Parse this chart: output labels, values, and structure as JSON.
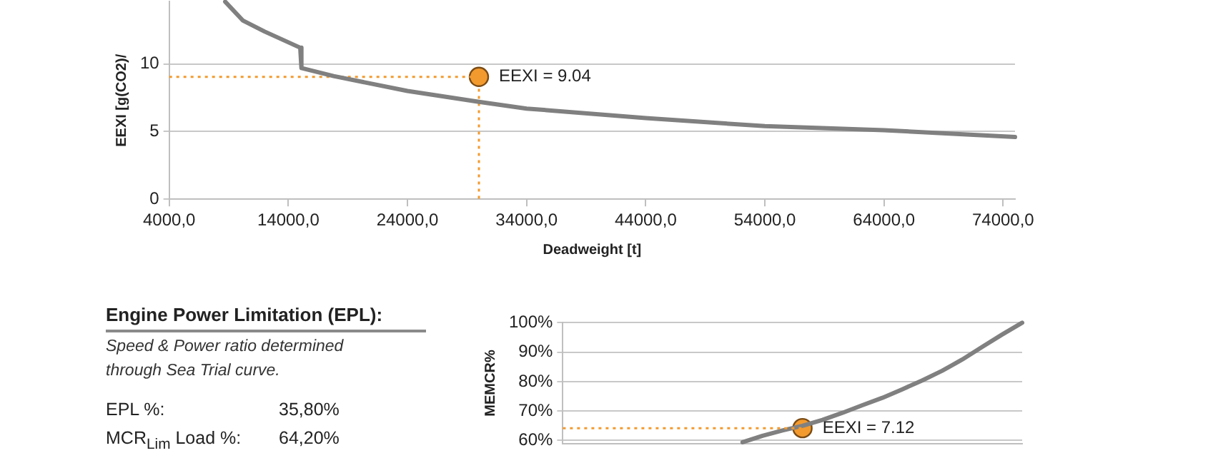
{
  "chart_data": [
    {
      "type": "line",
      "xlabel": "Deadweight [t]",
      "ylabel": "EEXI [g(CO2)/",
      "xlim": [
        4000,
        75000
      ],
      "ylim": [
        0,
        14.6
      ],
      "xticks": [
        {
          "value": 4000,
          "label": "4000,0"
        },
        {
          "value": 14000,
          "label": "14000,0"
        },
        {
          "value": 24000,
          "label": "24000,0"
        },
        {
          "value": 34000,
          "label": "34000,0"
        },
        {
          "value": 44000,
          "label": "44000,0"
        },
        {
          "value": 54000,
          "label": "54000,0"
        },
        {
          "value": 64000,
          "label": "64000,0"
        },
        {
          "value": 74000,
          "label": "74000,0"
        }
      ],
      "yticks": [
        0,
        5,
        10
      ],
      "grid": "y",
      "series": [
        {
          "type": "line",
          "color": "#808080",
          "x": [
            8700,
            10200,
            12000,
            15000,
            15100,
            17800,
            24000,
            30000,
            34000,
            44000,
            54000,
            64000,
            75000
          ],
          "values": [
            14.6,
            13.2,
            12.4,
            11.2,
            9.7,
            9.1,
            8.0,
            7.2,
            6.7,
            6.0,
            5.4,
            5.1,
            4.6
          ]
        },
        {
          "type": "line",
          "line_style": "dotted",
          "color": "#f39a2e",
          "x": [
            4000,
            30000,
            30000
          ],
          "values": [
            9.04,
            9.04,
            0
          ]
        },
        {
          "type": "scatter",
          "marker": "circle",
          "color": "#f39a2e",
          "x": [
            30000
          ],
          "values": [
            9.04
          ]
        }
      ],
      "annotations": [
        {
          "text": "EEXI = 9.04",
          "x": 30000,
          "y": 9.04
        }
      ]
    },
    {
      "type": "other",
      "title": "Engine Power Limitation (EPL):",
      "subtitle": "Speed & Power ratio determined through Sea Trial curve.",
      "annotations": [
        "EPL %:",
        "35,80%",
        "MCR$_{Lim}$ Load %:",
        "64,20%"
      ]
    },
    {
      "type": "line",
      "ylabel": "MEMCR%",
      "ylim": [
        59,
        100
      ],
      "yticks": [
        {
          "value": 60,
          "label": "60%"
        },
        {
          "value": 70,
          "label": "70%"
        },
        {
          "value": 80,
          "label": "80%"
        },
        {
          "value": 90,
          "label": "90%"
        },
        {
          "value": 100,
          "label": "100%"
        }
      ],
      "grid": "y",
      "tick_labels": "y",
      "categories": [
        null,
        null,
        null,
        null,
        null,
        null,
        null,
        null,
        null,
        null,
        null,
        null,
        null,
        null,
        null,
        null,
        null,
        null,
        null,
        null,
        null,
        null,
        null,
        null
      ],
      "series": [
        {
          "type": "line",
          "line_style": "dotted",
          "color": "#f39a2e",
          "values": [
            64.2,
            64.2,
            64.2,
            64.2,
            64.2,
            64.2,
            64.2,
            64.2,
            64.2,
            64.2,
            64.2,
            64.2,
            64.2,
            null,
            null,
            null,
            null,
            null,
            null,
            null,
            null,
            null,
            null,
            null
          ]
        },
        {
          "type": "line",
          "color": "#808080",
          "values": [
            null,
            null,
            null,
            null,
            null,
            null,
            null,
            null,
            null,
            59.4,
            61.6,
            63.4,
            65.0,
            67.0,
            69.4,
            72.0,
            74.5,
            77.4,
            80.4,
            83.7,
            87.5,
            91.8,
            96.0,
            100
          ]
        },
        {
          "type": "scatter",
          "marker": "circle",
          "color": "#f39a2e",
          "values": [
            null,
            null,
            null,
            null,
            null,
            null,
            null,
            null,
            null,
            null,
            null,
            null,
            64.2,
            null,
            null,
            null,
            null,
            null,
            null,
            null,
            null,
            null,
            null,
            null
          ]
        }
      ],
      "annotations": [
        "EEXI = 7.12"
      ]
    }
  ]
}
